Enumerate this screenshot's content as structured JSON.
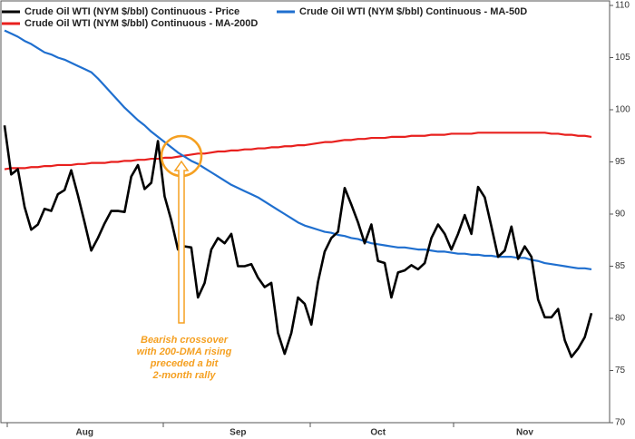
{
  "chart_data": {
    "type": "line",
    "categories": [
      null,
      null,
      null,
      null,
      null,
      null,
      null,
      null,
      null,
      null,
      null,
      null,
      "Aug",
      null,
      null,
      null,
      null,
      null,
      null,
      null,
      null,
      null,
      null,
      null,
      null,
      null,
      null,
      null,
      null,
      null,
      null,
      null,
      null,
      null,
      null,
      "Sep",
      null,
      null,
      null,
      null,
      null,
      null,
      null,
      null,
      null,
      null,
      null,
      null,
      null,
      null,
      null,
      null,
      null,
      null,
      null,
      null,
      "Oct",
      null,
      null,
      null,
      null,
      null,
      null,
      null,
      null,
      null,
      null,
      null,
      null,
      null,
      null,
      null,
      null,
      null,
      null,
      null,
      null,
      null,
      "Nov",
      null,
      null,
      null,
      null,
      null,
      null,
      null,
      null,
      null,
      null
    ],
    "series": [
      {
        "name": "Crude Oil WTI (NYM $/bbl) Continuous - Price",
        "color": "#000000",
        "values": [
          98.5,
          93.8,
          94.3,
          90.7,
          88.5,
          89.0,
          90.5,
          90.3,
          91.9,
          92.3,
          94.2,
          91.8,
          89.2,
          86.5,
          87.7,
          89.1,
          90.3,
          90.3,
          90.2,
          93.6,
          94.7,
          92.4,
          93.0,
          97.0,
          91.7,
          89.4,
          86.6,
          86.9,
          86.8,
          82.0,
          83.4,
          86.6,
          87.7,
          87.2,
          88.1,
          85.0,
          85.0,
          85.2,
          83.9,
          83.0,
          83.4,
          78.6,
          76.6,
          78.6,
          82.0,
          81.4,
          79.4,
          83.5,
          86.4,
          87.7,
          88.3,
          92.5,
          90.9,
          89.2,
          87.2,
          89.0,
          85.5,
          85.3,
          82.0,
          84.4,
          84.6,
          85.1,
          84.7,
          85.3,
          87.7,
          89.0,
          88.1,
          86.6,
          88.1,
          89.9,
          88.1,
          92.6,
          91.6,
          88.8,
          85.9,
          86.5,
          88.8,
          85.7,
          86.9,
          85.9,
          81.8,
          80.1,
          80.1,
          80.9,
          77.9,
          76.3,
          77.1,
          78.2,
          80.5
        ]
      },
      {
        "name": "Crude Oil WTI (NYM $/bbl) Continuous - MA-50D",
        "color": "#1f6fcf",
        "values": [
          107.6,
          107.3,
          107.0,
          106.6,
          106.3,
          105.9,
          105.5,
          105.3,
          105.0,
          104.8,
          104.5,
          104.2,
          103.9,
          103.6,
          103.0,
          102.3,
          101.6,
          100.9,
          100.2,
          99.6,
          99.0,
          98.5,
          97.9,
          97.4,
          96.9,
          96.4,
          95.9,
          95.5,
          95.1,
          94.8,
          94.4,
          94.0,
          93.6,
          93.2,
          92.8,
          92.5,
          92.2,
          91.9,
          91.6,
          91.2,
          90.8,
          90.4,
          90.0,
          89.6,
          89.2,
          88.9,
          88.7,
          88.5,
          88.3,
          88.2,
          88.0,
          87.9,
          87.7,
          87.6,
          87.4,
          87.2,
          87.1,
          87.0,
          86.9,
          86.8,
          86.8,
          86.7,
          86.6,
          86.6,
          86.5,
          86.4,
          86.4,
          86.3,
          86.2,
          86.2,
          86.1,
          86.1,
          86.0,
          86.0,
          85.9,
          85.9,
          85.9,
          85.8,
          85.8,
          85.6,
          85.5,
          85.3,
          85.2,
          85.1,
          85.0,
          84.9,
          84.8,
          84.8,
          84.7
        ]
      },
      {
        "name": "Crude Oil WTI (NYM $/bbl) Continuous - MA-200D",
        "color": "#e8201e",
        "values": [
          94.3,
          94.4,
          94.4,
          94.4,
          94.5,
          94.5,
          94.6,
          94.6,
          94.7,
          94.7,
          94.7,
          94.8,
          94.8,
          94.9,
          94.9,
          94.9,
          95.0,
          95.0,
          95.1,
          95.1,
          95.2,
          95.2,
          95.3,
          95.3,
          95.4,
          95.4,
          95.5,
          95.6,
          95.7,
          95.8,
          95.8,
          95.9,
          96.0,
          96.0,
          96.1,
          96.1,
          96.2,
          96.2,
          96.3,
          96.3,
          96.4,
          96.4,
          96.5,
          96.5,
          96.6,
          96.6,
          96.7,
          96.8,
          96.9,
          96.9,
          97.0,
          97.1,
          97.1,
          97.2,
          97.2,
          97.3,
          97.3,
          97.3,
          97.4,
          97.4,
          97.4,
          97.5,
          97.5,
          97.5,
          97.6,
          97.6,
          97.6,
          97.7,
          97.7,
          97.7,
          97.7,
          97.8,
          97.8,
          97.8,
          97.8,
          97.8,
          97.8,
          97.8,
          97.8,
          97.8,
          97.8,
          97.8,
          97.7,
          97.7,
          97.6,
          97.6,
          97.5,
          97.5,
          97.4
        ]
      }
    ],
    "ylim": [
      70,
      110
    ],
    "yticks": [
      70,
      75,
      80,
      85,
      90,
      95,
      100,
      105,
      110
    ],
    "annotation": [
      "Bearish crossover",
      "with 200-DMA rising",
      "preceded a bit",
      "2-month rally"
    ]
  }
}
